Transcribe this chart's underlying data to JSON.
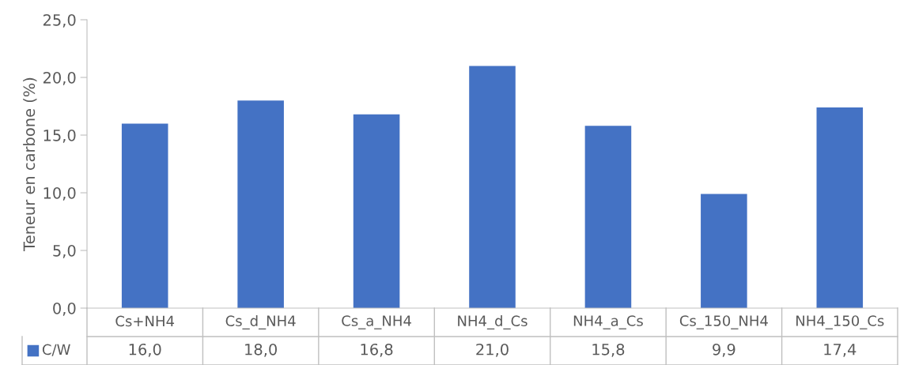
{
  "chart_data": {
    "type": "bar",
    "ylabel": "Teneur en carbone (%)",
    "categories": [
      "Cs+NH4",
      "Cs_d_NH4",
      "Cs_a_NH4",
      "NH4_d_Cs",
      "NH4_a_Cs",
      "Cs_150_NH4",
      "NH4_150_Cs"
    ],
    "series": [
      {
        "name": "C/W",
        "color": "#4472c4",
        "values": [
          16.0,
          18.0,
          16.8,
          21.0,
          15.8,
          9.9,
          17.4
        ],
        "value_labels": [
          "16,0",
          "18,0",
          "16,8",
          "21,0",
          "15,8",
          "9,9",
          "17,4"
        ]
      }
    ],
    "ylim": [
      0,
      25
    ],
    "yticks": [
      {
        "value": 0,
        "label": "0,0"
      },
      {
        "value": 5,
        "label": "5,0"
      },
      {
        "value": 10,
        "label": "10,0"
      },
      {
        "value": 15,
        "label": "15,0"
      },
      {
        "value": 20,
        "label": "20,0"
      },
      {
        "value": 25,
        "label": "25,0"
      }
    ],
    "grid": false,
    "legend": "bottom left"
  }
}
